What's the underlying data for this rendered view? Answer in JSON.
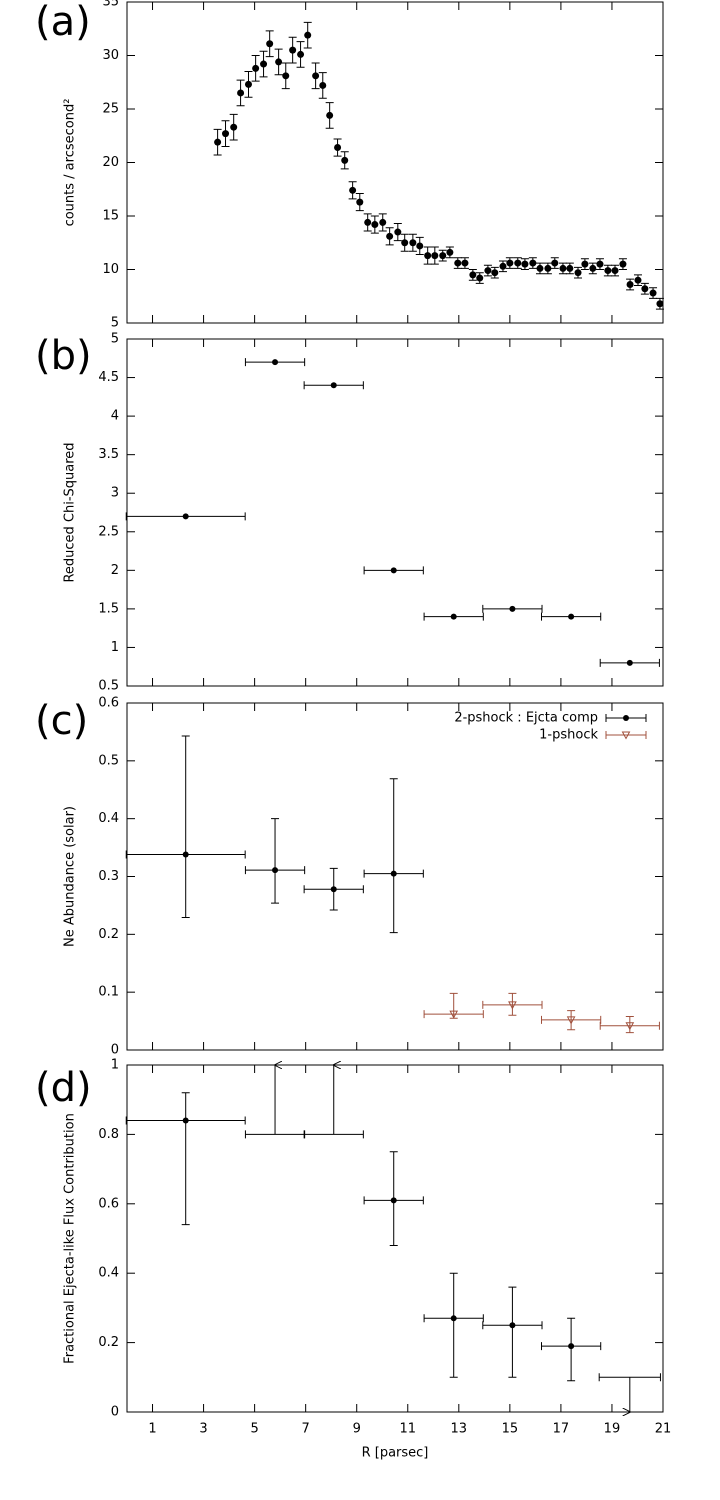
{
  "chart_data": [
    {
      "type": "scatter",
      "panel": "(a)",
      "ylabel": "counts / arcsecond²",
      "xlim": [
        0,
        21
      ],
      "ylim": [
        5,
        35
      ],
      "yticks": [
        5,
        10,
        15,
        20,
        25,
        30,
        35
      ],
      "series": [
        {
          "color": "#000000",
          "x": [
            3.55,
            3.86,
            4.18,
            4.45,
            4.76,
            5.04,
            5.35,
            5.59,
            5.94,
            6.22,
            6.49,
            6.8,
            7.08,
            7.39,
            7.67,
            7.94,
            8.25,
            8.53,
            8.84,
            9.12,
            9.43,
            9.71,
            10.02,
            10.29,
            10.61,
            10.88,
            11.2,
            11.47,
            11.78,
            12.06,
            12.37,
            12.65,
            12.96,
            13.24,
            13.55,
            13.82,
            14.14,
            14.41,
            14.73,
            15.0,
            15.31,
            15.59,
            15.9,
            16.18,
            16.49,
            16.76,
            17.08,
            17.35,
            17.67,
            17.94,
            18.25,
            18.53,
            18.84,
            19.12,
            19.43,
            19.71,
            20.02,
            20.29,
            20.61,
            20.88
          ],
          "values": [
            21.9,
            22.7,
            23.3,
            26.5,
            27.3,
            28.8,
            29.2,
            31.1,
            29.4,
            28.1,
            30.5,
            30.1,
            31.9,
            28.1,
            27.2,
            24.4,
            21.4,
            20.2,
            17.4,
            16.3,
            14.4,
            14.2,
            14.4,
            13.1,
            13.5,
            12.5,
            12.5,
            12.2,
            11.3,
            11.3,
            11.3,
            11.6,
            10.6,
            10.6,
            9.5,
            9.2,
            9.9,
            9.7,
            10.3,
            10.6,
            10.6,
            10.5,
            10.6,
            10.1,
            10.1,
            10.6,
            10.1,
            10.1,
            9.7,
            10.5,
            10.1,
            10.5,
            9.9,
            9.9,
            10.5,
            8.6,
            9.0,
            8.2,
            7.8,
            6.8
          ],
          "errors": [
            1.2,
            1.2,
            1.2,
            1.2,
            1.2,
            1.2,
            1.2,
            1.2,
            1.2,
            1.2,
            1.2,
            1.2,
            1.2,
            1.2,
            1.2,
            1.2,
            0.8,
            0.8,
            0.8,
            0.8,
            0.8,
            0.8,
            0.8,
            0.8,
            0.8,
            0.8,
            0.8,
            0.8,
            0.8,
            0.8,
            0.5,
            0.5,
            0.5,
            0.5,
            0.5,
            0.5,
            0.5,
            0.5,
            0.5,
            0.5,
            0.5,
            0.5,
            0.5,
            0.5,
            0.5,
            0.5,
            0.5,
            0.5,
            0.5,
            0.5,
            0.5,
            0.5,
            0.5,
            0.5,
            0.5,
            0.5,
            0.5,
            0.5,
            0.5,
            0.5
          ]
        }
      ]
    },
    {
      "type": "scatter",
      "panel": "(b)",
      "ylabel": "Reduced Chi-Squared",
      "xlim": [
        0,
        21
      ],
      "ylim": [
        0.5,
        5
      ],
      "yticks": [
        0.5,
        1,
        1.5,
        2,
        2.5,
        3,
        3.5,
        4,
        4.5,
        5
      ],
      "series": [
        {
          "color": "#000000",
          "x": [
            2.3,
            5.8,
            8.1,
            10.45,
            12.8,
            15.1,
            17.4,
            19.7
          ],
          "xerr": [
            2.33,
            1.16,
            1.16,
            1.16,
            1.16,
            1.16,
            1.16,
            1.16
          ],
          "values": [
            2.7,
            4.7,
            4.4,
            2.0,
            1.4,
            1.5,
            1.4,
            0.8
          ]
        }
      ]
    },
    {
      "type": "scatter",
      "panel": "(c)",
      "ylabel": "Ne Abundance (solar)",
      "xlim": [
        0,
        21
      ],
      "ylim": [
        0,
        0.6
      ],
      "yticks": [
        0,
        0.1,
        0.2,
        0.3,
        0.4,
        0.5,
        0.6
      ],
      "legend": "upper right",
      "series": [
        {
          "name": "2-pshock : Ejcta comp",
          "color": "#000000",
          "marker": "circle",
          "x": [
            2.3,
            5.8,
            8.1,
            10.45
          ],
          "xerr": [
            2.33,
            1.16,
            1.16,
            1.16
          ],
          "values": [
            0.338,
            0.311,
            0.278,
            0.305
          ],
          "lower": [
            0.229,
            0.254,
            0.242,
            0.203
          ],
          "upper": [
            0.543,
            0.4,
            0.314,
            0.469
          ]
        },
        {
          "name": "1-pshock",
          "color": "#a0503c",
          "marker": "triangle-down",
          "x": [
            12.8,
            15.1,
            17.4,
            19.7
          ],
          "xerr": [
            1.16,
            1.16,
            1.16,
            1.16
          ],
          "values": [
            0.062,
            0.078,
            0.052,
            0.042
          ],
          "lower": [
            0.055,
            0.06,
            0.035,
            0.03
          ],
          "upper": [
            0.098,
            0.098,
            0.068,
            0.058
          ]
        }
      ]
    },
    {
      "type": "scatter",
      "panel": "(d)",
      "ylabel": "Fractional Ejecta-like Flux Contribution",
      "xlabel": "R [parsec]",
      "xlim": [
        0,
        21
      ],
      "xticks": [
        1,
        3,
        5,
        7,
        9,
        11,
        13,
        15,
        17,
        19,
        21
      ],
      "ylim": [
        0,
        1
      ],
      "yticks": [
        0,
        0.2,
        0.4,
        0.6,
        0.8,
        1
      ],
      "series": [
        {
          "color": "#000000",
          "x": [
            2.3,
            5.8,
            8.1,
            10.45,
            12.8,
            15.1,
            17.4,
            19.7
          ],
          "xerr": [
            2.33,
            1.16,
            1.16,
            1.16,
            1.16,
            1.16,
            1.16,
            1.2
          ],
          "values": [
            0.84,
            0.8,
            0.8,
            0.61,
            0.27,
            0.25,
            0.19,
            0.1
          ],
          "lower": [
            0.54,
            null,
            null,
            0.48,
            0.1,
            0.1,
            0.09,
            null
          ],
          "upper": [
            0.92,
            null,
            null,
            0.75,
            0.4,
            0.36,
            0.27,
            null
          ],
          "limit": [
            null,
            "lower",
            "lower",
            null,
            null,
            null,
            null,
            "upper"
          ]
        }
      ]
    }
  ]
}
